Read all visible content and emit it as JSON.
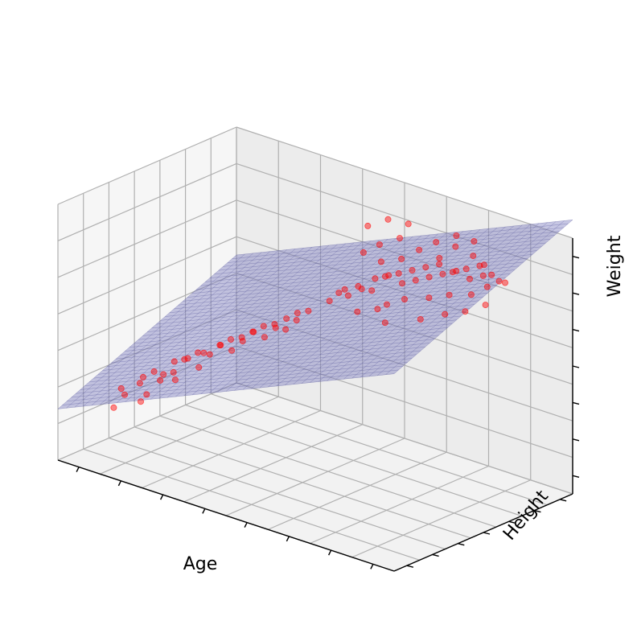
{
  "chart_data": {
    "type": "scatter",
    "projection": "3d",
    "xlabel": "Age",
    "ylabel": "Height",
    "zlabel": "Weight",
    "tick_labels_shown": false,
    "grid": true,
    "xlim": [
      0,
      8
    ],
    "ylim": [
      0,
      7
    ],
    "zlim": [
      0,
      7
    ],
    "points_color": "#ff0000",
    "plane_color": "#8080c0",
    "plane_mesh_color": "#3a3a8a",
    "series": [
      {
        "kind": "scatter",
        "points": [
          [
            0.6,
            1.2,
            1.3
          ],
          [
            0.8,
            1.3,
            1.7
          ],
          [
            0.9,
            1.0,
            2.0
          ],
          [
            1.0,
            1.6,
            1.5
          ],
          [
            1.1,
            1.4,
            2.1
          ],
          [
            1.2,
            1.5,
            1.8
          ],
          [
            1.3,
            1.2,
            2.4
          ],
          [
            1.4,
            1.7,
            2.2
          ],
          [
            1.5,
            1.3,
            2.6
          ],
          [
            1.6,
            1.5,
            2.5
          ],
          [
            1.7,
            1.8,
            2.3
          ],
          [
            1.8,
            1.6,
            2.9
          ],
          [
            1.9,
            1.4,
            2.7
          ],
          [
            2.0,
            1.8,
            3.0
          ],
          [
            2.1,
            1.5,
            3.1
          ],
          [
            2.2,
            1.9,
            2.8
          ],
          [
            2.3,
            1.7,
            3.3
          ],
          [
            2.4,
            2.0,
            3.2
          ],
          [
            2.5,
            1.6,
            3.4
          ],
          [
            2.6,
            2.1,
            3.5
          ],
          [
            2.7,
            1.9,
            3.6
          ],
          [
            2.8,
            2.2,
            3.4
          ],
          [
            2.9,
            2.0,
            3.8
          ],
          [
            3.0,
            2.3,
            3.7
          ],
          [
            3.1,
            2.1,
            3.9
          ],
          [
            3.2,
            2.4,
            4.0
          ],
          [
            3.3,
            2.2,
            4.1
          ],
          [
            3.4,
            2.5,
            3.9
          ],
          [
            3.5,
            2.3,
            4.3
          ],
          [
            3.6,
            2.6,
            4.2
          ],
          [
            3.7,
            2.4,
            4.4
          ],
          [
            3.8,
            2.7,
            4.5
          ],
          [
            3.9,
            2.5,
            4.3
          ],
          [
            4.0,
            2.8,
            4.7
          ],
          [
            4.1,
            2.6,
            4.6
          ],
          [
            4.2,
            2.9,
            4.8
          ],
          [
            4.4,
            3.4,
            5.0
          ],
          [
            4.5,
            3.6,
            5.2
          ],
          [
            4.6,
            3.8,
            5.1
          ],
          [
            4.7,
            3.5,
            5.4
          ],
          [
            4.8,
            4.0,
            5.3
          ],
          [
            4.9,
            3.7,
            5.5
          ],
          [
            5.0,
            4.2,
            5.6
          ],
          [
            5.1,
            3.9,
            5.4
          ],
          [
            5.2,
            4.4,
            5.7
          ],
          [
            5.3,
            4.1,
            5.8
          ],
          [
            5.4,
            4.6,
            5.5
          ],
          [
            5.5,
            4.3,
            5.9
          ],
          [
            5.6,
            4.8,
            5.6
          ],
          [
            5.7,
            4.5,
            6.0
          ],
          [
            5.8,
            5.0,
            5.7
          ],
          [
            5.9,
            4.7,
            6.1
          ],
          [
            6.0,
            5.2,
            5.8
          ],
          [
            6.1,
            4.9,
            6.2
          ],
          [
            6.2,
            5.4,
            5.9
          ],
          [
            6.3,
            5.1,
            6.0
          ],
          [
            6.4,
            5.6,
            5.7
          ],
          [
            6.5,
            5.3,
            6.1
          ],
          [
            6.6,
            5.8,
            5.8
          ],
          [
            6.7,
            5.5,
            6.2
          ],
          [
            4.9,
            4.6,
            5.9
          ],
          [
            5.2,
            4.9,
            6.0
          ],
          [
            5.5,
            5.1,
            6.3
          ],
          [
            5.8,
            5.4,
            6.1
          ],
          [
            6.0,
            5.7,
            6.4
          ],
          [
            6.3,
            5.9,
            6.2
          ],
          [
            5.4,
            4.0,
            5.1
          ],
          [
            5.7,
            4.2,
            5.3
          ],
          [
            6.1,
            4.5,
            5.4
          ],
          [
            6.4,
            4.8,
            5.5
          ],
          [
            6.8,
            5.0,
            5.6
          ],
          [
            7.0,
            5.3,
            5.8
          ],
          [
            7.1,
            5.6,
            5.9
          ],
          [
            4.6,
            4.4,
            6.1
          ],
          [
            4.8,
            4.7,
            6.3
          ],
          [
            5.1,
            5.0,
            6.5
          ],
          [
            5.0,
            3.5,
            4.9
          ],
          [
            5.3,
            3.8,
            5.0
          ],
          [
            5.6,
            3.6,
            4.8
          ],
          [
            6.2,
            4.0,
            5.0
          ],
          [
            6.6,
            4.3,
            5.2
          ],
          [
            6.9,
            4.6,
            5.3
          ],
          [
            7.2,
            4.9,
            5.5
          ],
          [
            5.9,
            5.9,
            6.6
          ],
          [
            6.2,
            6.1,
            6.5
          ],
          [
            4.4,
            4.9,
            6.6
          ],
          [
            4.7,
            5.2,
            6.8
          ],
          [
            5.0,
            5.5,
            6.7
          ],
          [
            5.6,
            5.6,
            6.4
          ],
          [
            6.5,
            6.0,
            6.0
          ],
          [
            6.8,
            5.8,
            5.9
          ],
          [
            7.0,
            6.0,
            5.7
          ]
        ]
      },
      {
        "kind": "surface",
        "description": "fitted regression plane",
        "corners": [
          [
            0,
            0,
            1.4
          ],
          [
            8,
            0,
            5.4
          ],
          [
            8,
            7,
            7.5
          ],
          [
            0,
            7,
            3.5
          ]
        ]
      }
    ]
  }
}
